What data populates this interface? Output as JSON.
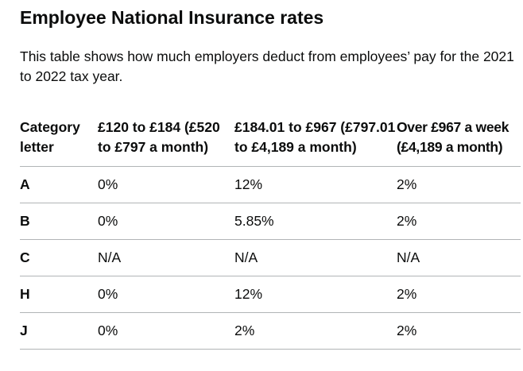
{
  "title": "Employee National Insurance rates",
  "intro": "This table shows how much employers deduct from employees’ pay for the 2021 to 2022 tax year.",
  "table": {
    "headers": [
      "Category letter",
      "£120 to £184 (£520 to £797 a month)",
      "£184.01 to £967 (£797.01 to £4,189 a month)",
      "Over £967 a week (£4,189 a month)"
    ],
    "rows": [
      [
        "A",
        "0%",
        "12%",
        "2%"
      ],
      [
        "B",
        "0%",
        "5.85%",
        "2%"
      ],
      [
        "C",
        "N/A",
        "N/A",
        "N/A"
      ],
      [
        "H",
        "0%",
        "12%",
        "2%"
      ],
      [
        "J",
        "0%",
        "2%",
        "2%"
      ]
    ]
  }
}
